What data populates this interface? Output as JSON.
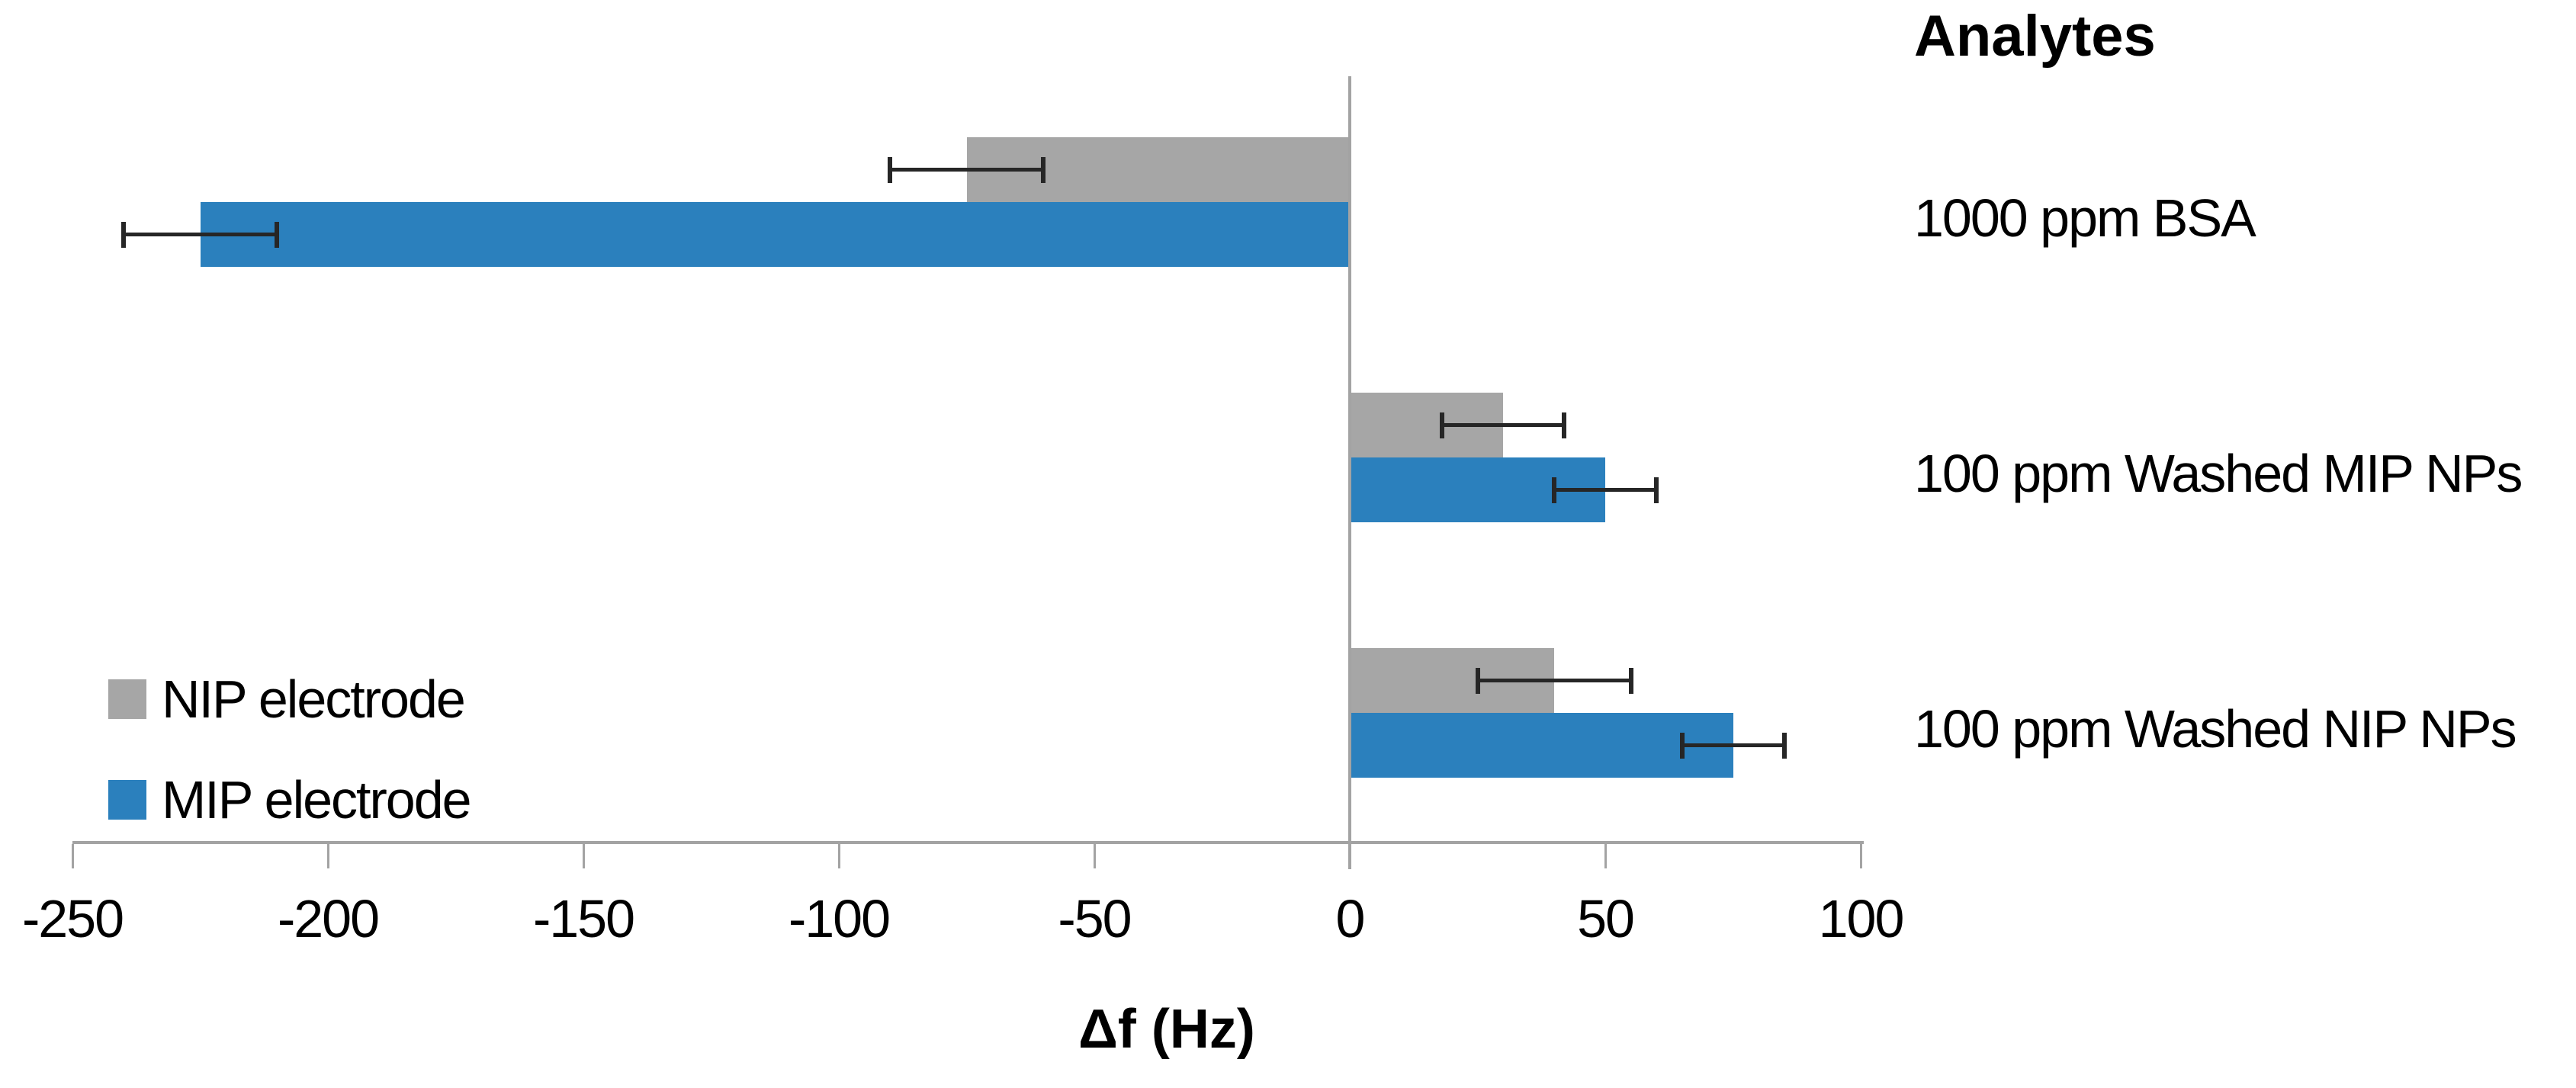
{
  "chart_data": {
    "type": "bar",
    "orientation": "horizontal",
    "title": "Analytes",
    "xlabel": "Δf (Hz)",
    "xlim": [
      -250,
      100
    ],
    "xticks": [
      -250,
      -200,
      -150,
      -100,
      -50,
      0,
      50,
      100
    ],
    "grid": false,
    "legend_position": "lower-left",
    "categories": [
      "1000 ppm BSA",
      "100 ppm Washed MIP NPs",
      "100 ppm Washed NIP NPs"
    ],
    "series": [
      {
        "name": "NIP electrode",
        "color": "#a6a6a6",
        "values": [
          -75,
          30,
          40
        ],
        "errors": [
          15,
          12,
          15
        ]
      },
      {
        "name": "MIP electrode",
        "color": "#2b80bd",
        "values": [
          -225,
          50,
          75
        ],
        "errors": [
          15,
          10,
          10
        ]
      }
    ]
  },
  "colors": {
    "axis": "#a3a3a3",
    "error_bar": "#262626",
    "text": "#000000",
    "background": "#ffffff"
  }
}
